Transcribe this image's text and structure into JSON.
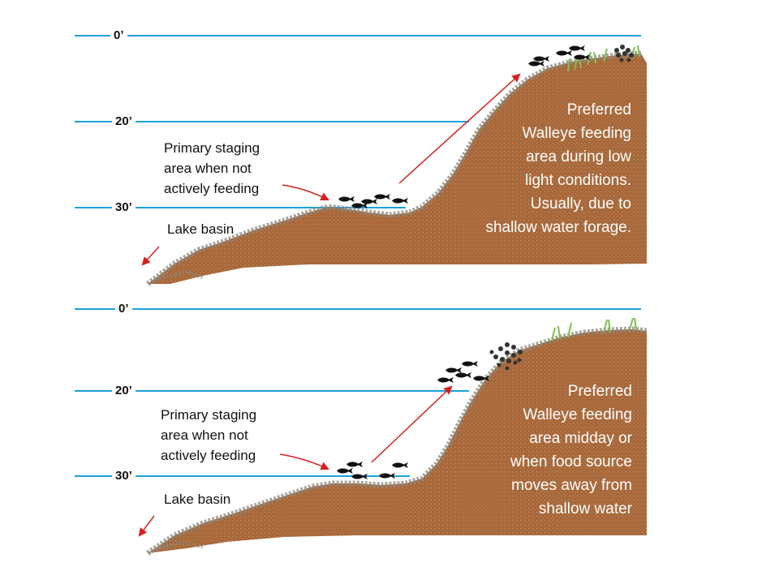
{
  "panels": [
    {
      "depth_labels": [
        "0’",
        "20’",
        "30’"
      ],
      "staging_text": [
        "Primary staging",
        "area when not",
        "actively feeding"
      ],
      "basin_label": "Lake basin",
      "feeding_text": [
        "Preferred",
        "Walleye feeding",
        "area during low",
        "light conditions.",
        "Usually, due to",
        "shallow water forage."
      ]
    },
    {
      "depth_labels": [
        "0’",
        "20’",
        "30’"
      ],
      "staging_text": [
        "Primary staging",
        "area when not",
        "actively feeding"
      ],
      "basin_label": "Lake basin",
      "feeding_text": [
        "Preferred",
        "Walleye feeding",
        "area midday or",
        "when food source",
        "moves away from",
        "shallow water"
      ]
    }
  ],
  "colors": {
    "water_line": "#1aa3d9",
    "bank_fill": "#a8683a",
    "bank_edge": "#8a8a82",
    "arrow": "#d42020",
    "fish": "#111111",
    "weed": "#7fbf4f",
    "forage": "#333333"
  }
}
